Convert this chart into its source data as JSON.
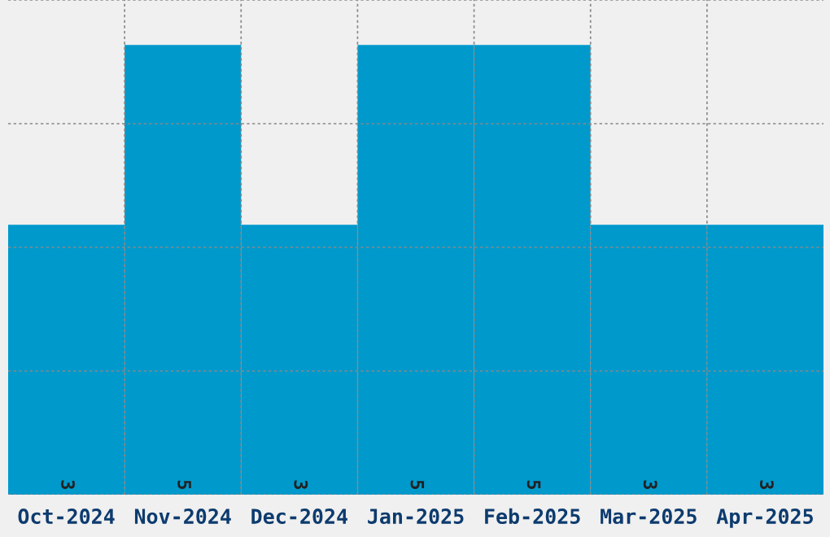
{
  "chart_data": {
    "type": "bar",
    "categories": [
      "Oct-2024",
      "Nov-2024",
      "Dec-2024",
      "Jan-2025",
      "Feb-2025",
      "Mar-2025",
      "Apr-2025"
    ],
    "values": [
      3,
      5,
      3,
      5,
      5,
      3,
      3
    ],
    "color": "#0099cc",
    "ylim": [
      0,
      5.5
    ],
    "yticks": [
      {
        "value": 0,
        "label": null
      },
      {
        "value": 1.375,
        "label": null
      },
      {
        "value": 2.75,
        "label": null
      },
      {
        "value": 4.125,
        "label": null
      },
      {
        "value": 5.5,
        "label": null
      }
    ],
    "tick_labels": "x",
    "grid": true,
    "data_labels": true
  }
}
